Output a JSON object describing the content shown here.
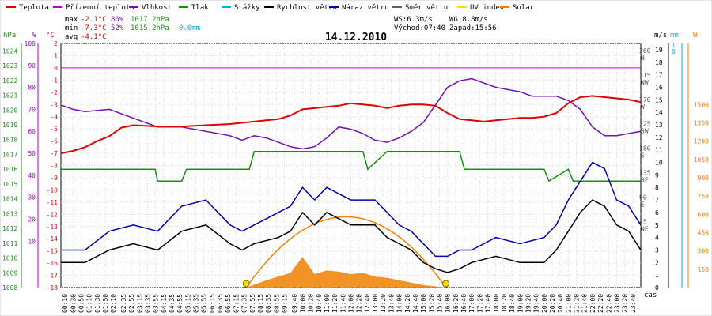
{
  "chart_data": {
    "type": "line",
    "title": "14.12.2010",
    "legend": [
      {
        "label": "Teplota",
        "color": "#e00000"
      },
      {
        "label": "Přízemní teplota",
        "color": "#b000c8"
      },
      {
        "label": "Vlhkost",
        "color": "#7010b0"
      },
      {
        "label": "Tlak",
        "color": "#109010"
      },
      {
        "label": "Srážky",
        "color": "#00b0d0"
      },
      {
        "label": "Rychlost větru",
        "color": "#000000"
      },
      {
        "label": "Náraz větru",
        "color": "#0000b0"
      },
      {
        "label": "Směr větru",
        "color": "#606060"
      },
      {
        "label": "UV index",
        "color": "#f0e000"
      },
      {
        "label": "Solar",
        "color": "#f08000"
      }
    ],
    "stats": {
      "max_label": "max",
      "max_temp": "-2.1°C",
      "max_hum": "86%",
      "max_press": "1017.2hPa",
      "max_rain": "0.0mm",
      "min_label": "min",
      "min_temp": "-7.3°C",
      "min_hum": "52%",
      "min_press": "1015.2hPa",
      "avg_label": "avg",
      "avg_temp": "-4.1°C",
      "ws": "WS:6.3m/s",
      "wg": "WG:8.8m/s",
      "sunrise": "Východ:07:40",
      "sunset": "Západ:15:56"
    },
    "axis_units": {
      "hpa": "hPa",
      "pct": "%",
      "temp": "°C",
      "ms": "m/s",
      "mm": "mm",
      "w": "W",
      "time": "čas"
    },
    "axes": {
      "temp_ticks": [
        2,
        1,
        0,
        -1,
        -2,
        -3,
        -4,
        -5,
        -6,
        -7,
        -8,
        -9,
        -10,
        -11,
        -12,
        -13,
        -14,
        -15,
        -16,
        -17,
        -18
      ],
      "pressure_ticks": [
        1024,
        1023,
        1022,
        1021,
        1020,
        1019,
        1018,
        1017,
        1016,
        1015,
        1014,
        1013,
        1012,
        1011,
        1010,
        1009,
        1008
      ],
      "humidity_ticks": [
        100,
        90,
        80,
        70,
        60,
        50,
        40,
        30,
        20,
        10
      ],
      "wind_ticks": [
        19,
        18,
        17,
        16,
        15,
        14,
        13,
        12,
        11,
        10,
        9,
        8,
        7,
        6,
        5,
        4,
        3,
        2,
        1,
        0
      ],
      "rain_ticks": [
        1,
        0
      ],
      "solar_ticks": [
        1500,
        1350,
        1200,
        1050,
        900,
        750,
        600,
        450,
        300,
        150
      ],
      "direction_ticks": [
        {
          "deg": "360",
          "dir": "N"
        },
        {
          "deg": "315",
          "dir": "NW"
        },
        {
          "deg": "270",
          "dir": "W"
        },
        {
          "deg": "225",
          "dir": "SW"
        },
        {
          "deg": "180",
          "dir": "S"
        },
        {
          "deg": "135",
          "dir": "SE"
        },
        {
          "deg": "90",
          "dir": "E"
        },
        {
          "deg": "45",
          "dir": "NE"
        }
      ],
      "time_ticks": [
        "00:10",
        "00:30",
        "00:50",
        "01:10",
        "01:30",
        "01:50",
        "02:10",
        "02:35",
        "02:55",
        "03:15",
        "03:35",
        "03:55",
        "04:15",
        "04:35",
        "04:55",
        "05:15",
        "05:35",
        "05:55",
        "06:15",
        "06:35",
        "06:55",
        "07:15",
        "07:35",
        "07:55",
        "08:15",
        "08:35",
        "08:55",
        "09:15",
        "09:40",
        "10:00",
        "10:20",
        "10:40",
        "11:00",
        "11:20",
        "11:40",
        "12:00",
        "12:20",
        "12:40",
        "13:00",
        "13:20",
        "13:40",
        "14:00",
        "14:20",
        "14:40",
        "15:00",
        "15:20",
        "15:40",
        "16:00",
        "16:20",
        "16:40",
        "17:00",
        "17:20",
        "17:40",
        "18:00",
        "18:20",
        "18:40",
        "19:00",
        "19:20",
        "19:40",
        "20:00",
        "20:20",
        "20:40",
        "21:00",
        "21:20",
        "21:40",
        "22:00",
        "22:20",
        "22:40",
        "23:00",
        "23:20",
        "23:40"
      ]
    },
    "series": [
      {
        "name": "Teplota",
        "unit": "°C",
        "hours": [
          0,
          0.5,
          1,
          1.5,
          2,
          2.5,
          3,
          4,
          5,
          6,
          7,
          7.5,
          8,
          8.5,
          9,
          9.5,
          10,
          10.5,
          11,
          11.5,
          12,
          12.5,
          13,
          13.5,
          14,
          14.5,
          15,
          15.5,
          16,
          16.5,
          17,
          17.5,
          18,
          18.5,
          19,
          19.5,
          20,
          20.5,
          21,
          21.5,
          22,
          22.5,
          23,
          23.5,
          24
        ],
        "values": [
          -7,
          -6.8,
          -6.5,
          -6,
          -5.6,
          -4.9,
          -4.7,
          -4.8,
          -4.8,
          -4.7,
          -4.6,
          -4.5,
          -4.4,
          -4.3,
          -4.2,
          -3.9,
          -3.4,
          -3.3,
          -3.2,
          -3.1,
          -2.9,
          -3,
          -3.1,
          -3.3,
          -3.1,
          -3,
          -3,
          -3.1,
          -3.7,
          -4.2,
          -4.3,
          -4.4,
          -4.3,
          -4.2,
          -4.1,
          -4.1,
          -4,
          -3.7,
          -2.9,
          -2.4,
          -2.3,
          -2.4,
          -2.5,
          -2.6,
          -2.8
        ]
      },
      {
        "name": "Vlhkost",
        "unit": "%",
        "hours": [
          0,
          0.5,
          1,
          2,
          3,
          4,
          5,
          6,
          7,
          7.5,
          8,
          8.5,
          9,
          9.5,
          10,
          10.5,
          11,
          11.5,
          12,
          12.5,
          13,
          13.5,
          14,
          14.5,
          15,
          15.5,
          16,
          16.5,
          17,
          17.5,
          18,
          18.5,
          19,
          19.5,
          20,
          20.5,
          21,
          21.5,
          22,
          22.5,
          23,
          23.5,
          24
        ],
        "values": [
          72,
          70,
          69,
          70,
          66,
          62,
          62,
          60,
          58,
          56,
          58,
          57,
          55,
          53,
          52,
          53,
          57,
          62,
          61,
          59,
          56,
          55,
          57,
          60,
          64,
          72,
          80,
          83,
          84,
          82,
          80,
          79,
          78,
          76,
          76,
          76,
          74,
          70,
          62,
          58,
          58,
          59,
          60
        ]
      },
      {
        "name": "Tlak",
        "unit": "hPa",
        "hours": [
          0,
          2,
          3.9,
          4,
          5,
          5.2,
          7.8,
          8,
          12.5,
          12.7,
          13.5,
          16.5,
          16.7,
          20,
          20.2,
          21,
          21.2,
          24
        ],
        "values": [
          1016,
          1016,
          1016,
          1015.2,
          1015.2,
          1016,
          1016,
          1017.2,
          1017.2,
          1016,
          1017.2,
          1017.2,
          1016,
          1016,
          1015.2,
          1016,
          1015.2,
          1015.2
        ]
      },
      {
        "name": "Rychlost větru",
        "unit": "m/s",
        "hours": [
          0,
          1,
          2,
          3,
          4,
          5,
          6,
          7,
          7.5,
          8,
          9,
          9.5,
          10,
          10.5,
          11,
          11.5,
          12,
          13,
          13.5,
          14,
          14.5,
          15,
          15.5,
          16,
          16.5,
          17,
          18,
          19,
          20,
          20.5,
          21,
          21.5,
          22,
          22.5,
          23,
          23.5,
          24
        ],
        "values": [
          2,
          2,
          3,
          3.5,
          3,
          4.5,
          5,
          3.5,
          3,
          3.5,
          4,
          4.5,
          6,
          5,
          6,
          5.5,
          5,
          5,
          4,
          3.5,
          3,
          2,
          1.5,
          1.2,
          1.5,
          2,
          2.5,
          2,
          2,
          3,
          4.5,
          6,
          7,
          6.5,
          5,
          4.5,
          3
        ]
      },
      {
        "name": "Náraz větru",
        "unit": "m/s",
        "hours": [
          0,
          1,
          2,
          3,
          4,
          5,
          6,
          7,
          7.5,
          8,
          9,
          9.5,
          10,
          10.5,
          11,
          11.5,
          12,
          13,
          13.5,
          14,
          14.5,
          15,
          15.5,
          16,
          16.5,
          17,
          18,
          19,
          20,
          20.5,
          21,
          21.5,
          22,
          22.5,
          23,
          23.5,
          24
        ],
        "values": [
          3,
          3,
          4.5,
          5,
          4.5,
          6.5,
          7,
          5,
          4.5,
          5,
          6,
          6.5,
          8,
          7,
          8,
          7.5,
          7,
          7,
          6,
          5,
          4.5,
          3.5,
          2.5,
          2.5,
          3,
          3,
          4,
          3.5,
          4,
          5,
          7,
          8.5,
          10,
          9.5,
          7,
          6.5,
          5
        ]
      },
      {
        "name": "Solar",
        "unit": "W",
        "hours": [
          7.67,
          8.5,
          9.5,
          10,
          10.5,
          11,
          11.5,
          12,
          12.5,
          13,
          13.5,
          14,
          14.5,
          15,
          15.5,
          15.93
        ],
        "values": [
          0,
          60,
          120,
          250,
          110,
          140,
          130,
          110,
          120,
          90,
          80,
          60,
          40,
          20,
          10,
          0
        ]
      }
    ]
  }
}
